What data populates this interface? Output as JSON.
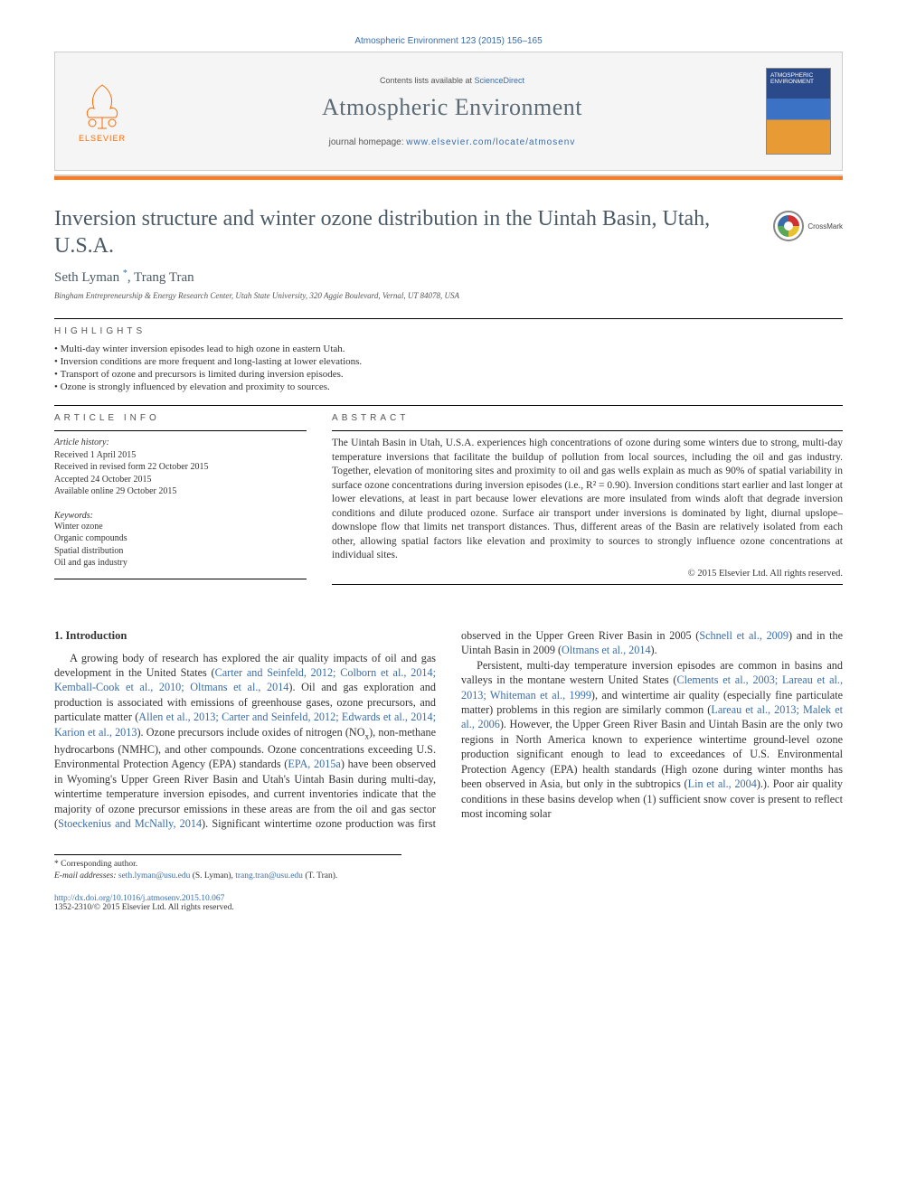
{
  "journal_ref": "Atmospheric Environment 123 (2015) 156–165",
  "header": {
    "listline_prefix": "Contents lists available at ",
    "listline_link": "ScienceDirect",
    "journal_name": "Atmospheric Environment",
    "homepage_label": "journal homepage: ",
    "homepage_url": "www.elsevier.com/locate/atmosenv",
    "publisher": "ELSEVIER",
    "cover_title": "ATMOSPHERIC ENVIRONMENT"
  },
  "crossmark": "CrossMark",
  "title": "Inversion structure and winter ozone distribution in the Uintah Basin, Utah, U.S.A.",
  "authors_html": "Seth Lyman <sup>*</sup>, Trang Tran",
  "affiliation": "Bingham Entrepreneurship & Energy Research Center, Utah State University, 320 Aggie Boulevard, Vernal, UT 84078, USA",
  "highlights_label": "HIGHLIGHTS",
  "highlights": [
    "Multi-day winter inversion episodes lead to high ozone in eastern Utah.",
    "Inversion conditions are more frequent and long-lasting at lower elevations.",
    "Transport of ozone and precursors is limited during inversion episodes.",
    "Ozone is strongly influenced by elevation and proximity to sources."
  ],
  "article_info_label": "ARTICLE INFO",
  "abstract_label": "ABSTRACT",
  "history": {
    "heading": "Article history:",
    "received": "Received 1 April 2015",
    "revised": "Received in revised form 22 October 2015",
    "accepted": "Accepted 24 October 2015",
    "online": "Available online 29 October 2015"
  },
  "keywords_label": "Keywords:",
  "keywords": [
    "Winter ozone",
    "Organic compounds",
    "Spatial distribution",
    "Oil and gas industry"
  ],
  "abstract": "The Uintah Basin in Utah, U.S.A. experiences high concentrations of ozone during some winters due to strong, multi-day temperature inversions that facilitate the buildup of pollution from local sources, including the oil and gas industry. Together, elevation of monitoring sites and proximity to oil and gas wells explain as much as 90% of spatial variability in surface ozone concentrations during inversion episodes (i.e., R² = 0.90). Inversion conditions start earlier and last longer at lower elevations, at least in part because lower elevations are more insulated from winds aloft that degrade inversion conditions and dilute produced ozone. Surface air transport under inversions is dominated by light, diurnal upslope–downslope flow that limits net transport distances. Thus, different areas of the Basin are relatively isolated from each other, allowing spatial factors like elevation and proximity to sources to strongly influence ozone concentrations at individual sites.",
  "abs_copyright": "© 2015 Elsevier Ltd. All rights reserved.",
  "intro_heading": "1.  Introduction",
  "intro_p1_a": "A growing body of research has explored the air quality impacts of oil and gas development in the United States (",
  "intro_p1_cite1": "Carter and Seinfeld, 2012; Colborn et al., 2014; Kemball-Cook et al., 2010; Oltmans et al., 2014",
  "intro_p1_b": "). Oil and gas exploration and production is associated with emissions of greenhouse gases, ozone precursors, and particulate matter (",
  "intro_p1_cite2": "Allen et al., 2013; Carter and Seinfeld, 2012; Edwards et al., 2014; Karion et al., 2013",
  "intro_p1_c": "). Ozone precursors include oxides of nitrogen (NO",
  "intro_p1_cx": "x",
  "intro_p1_d": "), non-methane hydrocarbons (NMHC), and other compounds. Ozone concentrations exceeding U.S. Environmental Protection Agency (EPA) standards (",
  "intro_p1_cite3": "EPA, 2015a",
  "intro_p1_e": ") have been observed in Wyoming's Upper Green River Basin and Utah's Uintah Basin during multi-day, wintertime temperature inversion episodes, and current inventories indicate that the majority of ozone ",
  "intro_p1_f": "precursor emissions in these areas are from the oil and gas sector (",
  "intro_p1_cite4": "Stoeckenius and McNally, 2014",
  "intro_p1_g": "). Significant wintertime ozone production was first observed in the Upper Green River Basin in 2005 (",
  "intro_p1_cite5": "Schnell et al., 2009",
  "intro_p1_h": ") and in the Uintah Basin in 2009 (",
  "intro_p1_cite6": "Oltmans et al., 2014",
  "intro_p1_i": ").",
  "intro_p2_a": "Persistent, multi-day temperature inversion episodes are common in basins and valleys in the montane western United States (",
  "intro_p2_cite1": "Clements et al., 2003; Lareau et al., 2013; Whiteman et al., 1999",
  "intro_p2_b": "), and wintertime air quality (especially fine particulate matter) problems in this region are similarly common (",
  "intro_p2_cite2": "Lareau et al., 2013; Malek et al., 2006",
  "intro_p2_c": "). However, the Upper Green River Basin and Uintah Basin are the only two regions in North America known to experience wintertime ground-level ozone production significant enough to lead to exceedances of U.S. Environmental Protection Agency (EPA) health standards (High ozone during winter months has been observed in Asia, but only in the subtropics (",
  "intro_p2_cite3": "Lin et al., 2004",
  "intro_p2_d": ").). Poor air quality conditions in these basins develop when (1) sufficient snow cover is present to reflect most incoming solar",
  "footnotes": {
    "corr": "* Corresponding author.",
    "emails_label": "E-mail addresses: ",
    "email1": "seth.lyman@usu.edu",
    "email1_who": " (S. Lyman), ",
    "email2": "trang.tran@usu.edu",
    "email2_who": " (T. Tran)."
  },
  "doi": "http://dx.doi.org/10.1016/j.atmosenv.2015.10.067",
  "issn": "1352-2310/© 2015 Elsevier Ltd. All rights reserved.",
  "colors": {
    "link": "#3a6da8",
    "accent": "#ff7a1a",
    "title": "#4b5a65"
  }
}
